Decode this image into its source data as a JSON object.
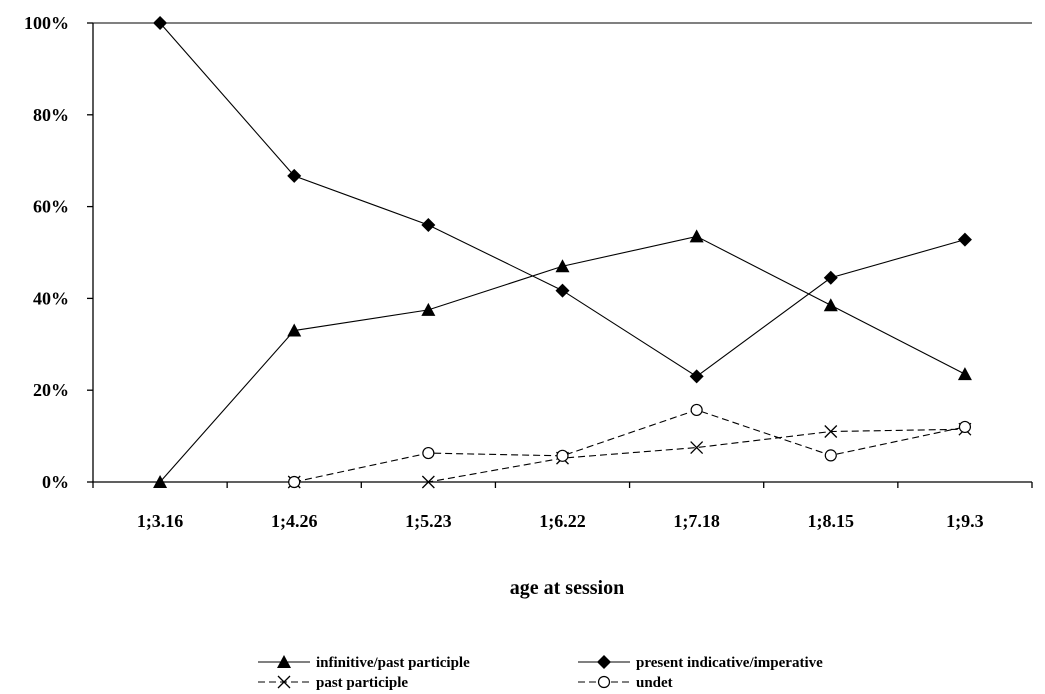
{
  "chart_data": {
    "type": "line",
    "title": "",
    "xlabel": "age at session",
    "ylabel": "",
    "categories": [
      "1;3.16",
      "1;4.26",
      "1;5.23",
      "1;6.22",
      "1;7.18",
      "1;8.15",
      "1;9.3"
    ],
    "yticks": [
      "0%",
      "20%",
      "40%",
      "60%",
      "80%",
      "100%"
    ],
    "ylim": [
      0,
      100
    ],
    "grid": false,
    "legend_position": "bottom",
    "series": [
      {
        "name": "infinitive/past participle",
        "marker": "triangle",
        "line": "solid",
        "color": "#000000",
        "values": [
          0,
          33,
          37.5,
          47,
          53.5,
          38.5,
          23.5
        ]
      },
      {
        "name": "present indicative/imperative",
        "marker": "diamond",
        "line": "solid",
        "color": "#000000",
        "values": [
          100,
          66.7,
          56,
          41.7,
          23,
          44.5,
          52.8
        ]
      },
      {
        "name": "past participle",
        "marker": "x",
        "line": "dashed",
        "color": "#000000",
        "values": [
          null,
          0,
          0,
          5.2,
          7.5,
          11,
          11.5
        ]
      },
      {
        "name": "undet",
        "marker": "circle",
        "line": "dashed",
        "color": "#000000",
        "values": [
          null,
          0,
          6.3,
          5.7,
          15.7,
          5.8,
          12
        ]
      }
    ]
  }
}
